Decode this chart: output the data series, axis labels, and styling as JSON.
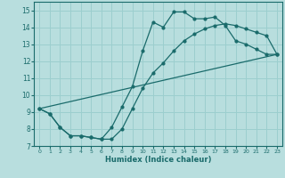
{
  "xlabel": "Humidex (Indice chaleur)",
  "bg_color": "#b8dede",
  "grid_color": "#9ccece",
  "line_color": "#1a6b6b",
  "line1_x": [
    0,
    1,
    2,
    3,
    4,
    5,
    6,
    7,
    8,
    9,
    10,
    11,
    12,
    13,
    14,
    15,
    16,
    17,
    18,
    19,
    20,
    21,
    22,
    23
  ],
  "line1_y": [
    9.2,
    8.9,
    8.1,
    7.6,
    7.6,
    7.5,
    7.4,
    8.1,
    9.3,
    10.5,
    12.6,
    14.3,
    14.0,
    14.9,
    14.9,
    14.5,
    14.5,
    14.6,
    14.1,
    13.2,
    13.0,
    12.7,
    12.4,
    12.4
  ],
  "line2_x": [
    0,
    1,
    2,
    3,
    4,
    5,
    6,
    7,
    8,
    9,
    10,
    11,
    12,
    13,
    14,
    15,
    16,
    17,
    18,
    19,
    20,
    21,
    22,
    23
  ],
  "line2_y": [
    9.2,
    8.9,
    8.1,
    7.6,
    7.6,
    7.5,
    7.4,
    7.4,
    8.0,
    9.2,
    10.4,
    11.3,
    11.9,
    12.6,
    13.2,
    13.6,
    13.9,
    14.1,
    14.2,
    14.1,
    13.9,
    13.7,
    13.5,
    12.4
  ],
  "line3_x": [
    0,
    23
  ],
  "line3_y": [
    9.2,
    12.4
  ],
  "xlim": [
    -0.5,
    23.5
  ],
  "ylim": [
    7.0,
    15.5
  ],
  "yticks": [
    7,
    8,
    9,
    10,
    11,
    12,
    13,
    14,
    15
  ],
  "xticks": [
    0,
    1,
    2,
    3,
    4,
    5,
    6,
    7,
    8,
    9,
    10,
    11,
    12,
    13,
    14,
    15,
    16,
    17,
    18,
    19,
    20,
    21,
    22,
    23
  ]
}
